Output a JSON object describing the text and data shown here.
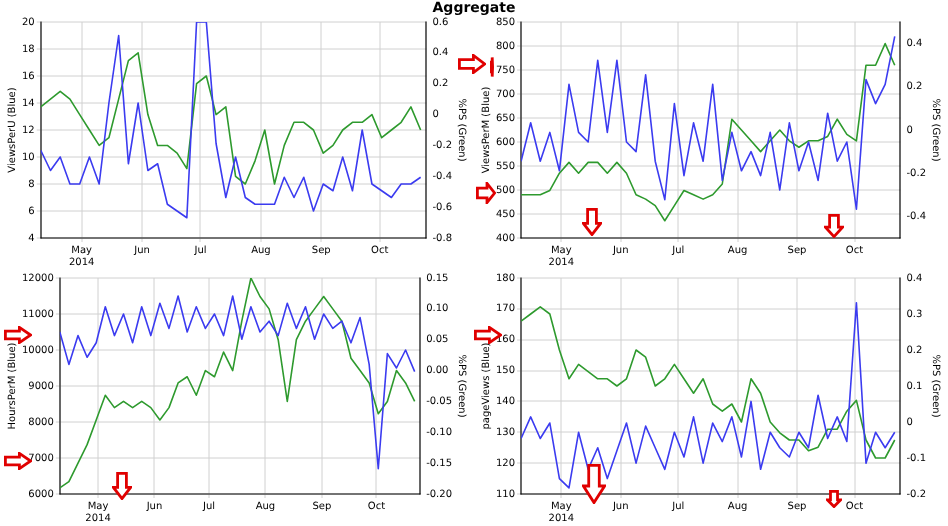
{
  "chart_data": [
    {
      "type": "line",
      "title": "Aggregate",
      "ylabel": "ViewsPerU (Blue)",
      "y2label": "%PS (Green)",
      "grid": true,
      "x": [
        "2014-04-10",
        "2014-04-15",
        "2014-04-20",
        "2014-04-25",
        "2014-04-30",
        "2014-05-05",
        "2014-05-10",
        "2014-05-15",
        "2014-05-20",
        "2014-05-25",
        "2014-05-30",
        "2014-06-04",
        "2014-06-09",
        "2014-06-14",
        "2014-06-19",
        "2014-06-24",
        "2014-06-29",
        "2014-07-04",
        "2014-07-09",
        "2014-07-14",
        "2014-07-19",
        "2014-07-24",
        "2014-07-29",
        "2014-08-03",
        "2014-08-08",
        "2014-08-13",
        "2014-08-18",
        "2014-08-23",
        "2014-08-28",
        "2014-09-02",
        "2014-09-07",
        "2014-09-12",
        "2014-09-17",
        "2014-09-22",
        "2014-09-27",
        "2014-10-02",
        "2014-10-07",
        "2014-10-12",
        "2014-10-17",
        "2014-10-22"
      ],
      "xlim": [
        "2014-04-10",
        "2014-10-25"
      ],
      "xticks": [
        {
          "value": "2014-05-01",
          "label": "May\n2014"
        },
        {
          "value": "2014-06-01",
          "label": "Jun"
        },
        {
          "value": "2014-07-01",
          "label": "Jul"
        },
        {
          "value": "2014-08-01",
          "label": "Aug"
        },
        {
          "value": "2014-09-01",
          "label": "Sep"
        },
        {
          "value": "2014-10-01",
          "label": "Oct"
        }
      ],
      "ylim": [
        4,
        20
      ],
      "yticks": [
        4,
        6,
        8,
        10,
        12,
        14,
        16,
        18,
        20
      ],
      "y2lim": [
        -0.8,
        0.6
      ],
      "y2ticks": [
        -0.8,
        -0.6,
        -0.4,
        -0.2,
        0.0,
        0.2,
        0.4,
        0.6
      ],
      "series": [
        {
          "color": "#3b3bf0",
          "values": [
            10.5,
            9,
            10,
            8,
            8,
            10,
            8,
            14,
            19,
            9.5,
            14,
            9,
            9.5,
            6.5,
            6,
            5.5,
            20,
            20,
            11,
            7,
            10,
            7,
            6.5,
            6.5,
            6.5,
            8.5,
            7,
            8.5,
            6,
            8,
            7.5,
            10,
            7.5,
            12,
            8,
            7.5,
            7,
            8,
            8,
            8.5
          ]
        },
        {
          "color": "#2e9a2e",
          "axis": "y2",
          "values": [
            0.05,
            0.1,
            0.15,
            0.1,
            0.0,
            -0.1,
            -0.2,
            -0.15,
            0.1,
            0.35,
            0.4,
            0.0,
            -0.2,
            -0.2,
            -0.25,
            -0.35,
            0.2,
            0.25,
            0.0,
            0.05,
            -0.4,
            -0.45,
            -0.3,
            -0.1,
            -0.45,
            -0.2,
            -0.05,
            -0.05,
            -0.1,
            -0.25,
            -0.2,
            -0.1,
            -0.05,
            -0.05,
            0.0,
            -0.15,
            -0.1,
            -0.05,
            0.05,
            -0.1
          ]
        }
      ]
    },
    {
      "type": "line",
      "ylabel": "ViewsPerM (Blue)",
      "y2label": "%PS (Green)",
      "grid": true,
      "x": [
        "2014-04-10",
        "2014-04-15",
        "2014-04-20",
        "2014-04-25",
        "2014-04-30",
        "2014-05-05",
        "2014-05-10",
        "2014-05-15",
        "2014-05-20",
        "2014-05-25",
        "2014-05-30",
        "2014-06-04",
        "2014-06-09",
        "2014-06-14",
        "2014-06-19",
        "2014-06-24",
        "2014-06-29",
        "2014-07-04",
        "2014-07-09",
        "2014-07-14",
        "2014-07-19",
        "2014-07-24",
        "2014-07-29",
        "2014-08-03",
        "2014-08-08",
        "2014-08-13",
        "2014-08-18",
        "2014-08-23",
        "2014-08-28",
        "2014-09-02",
        "2014-09-07",
        "2014-09-12",
        "2014-09-17",
        "2014-09-22",
        "2014-09-27",
        "2014-10-02",
        "2014-10-07",
        "2014-10-12",
        "2014-10-17",
        "2014-10-22"
      ],
      "xlim": [
        "2014-04-10",
        "2014-10-25"
      ],
      "xticks": [
        {
          "value": "2014-05-01",
          "label": "May\n2014"
        },
        {
          "value": "2014-06-01",
          "label": "Jun"
        },
        {
          "value": "2014-07-01",
          "label": "Jul"
        },
        {
          "value": "2014-08-01",
          "label": "Aug"
        },
        {
          "value": "2014-09-01",
          "label": "Sep"
        },
        {
          "value": "2014-10-01",
          "label": "Oct"
        }
      ],
      "ylim": [
        400,
        850
      ],
      "yticks": [
        400,
        450,
        500,
        550,
        600,
        650,
        700,
        750,
        800,
        850
      ],
      "y2lim": [
        -0.5,
        0.5
      ],
      "y2ticks": [
        -0.4,
        -0.2,
        0.0,
        0.2,
        0.4
      ],
      "series": [
        {
          "color": "#3b3bf0",
          "values": [
            560,
            640,
            560,
            620,
            540,
            720,
            620,
            600,
            770,
            620,
            770,
            600,
            580,
            740,
            560,
            480,
            680,
            530,
            640,
            560,
            720,
            520,
            620,
            540,
            580,
            530,
            620,
            500,
            640,
            540,
            600,
            520,
            660,
            560,
            600,
            460,
            730,
            680,
            720,
            820
          ]
        },
        {
          "color": "#2e9a2e",
          "axis": "y2",
          "values": [
            -0.3,
            -0.3,
            -0.3,
            -0.28,
            -0.2,
            -0.15,
            -0.2,
            -0.15,
            -0.15,
            -0.2,
            -0.15,
            -0.2,
            -0.3,
            -0.32,
            -0.35,
            -0.42,
            -0.35,
            -0.28,
            -0.3,
            -0.32,
            -0.3,
            -0.25,
            0.05,
            0.0,
            -0.05,
            -0.1,
            -0.05,
            0.0,
            -0.05,
            -0.08,
            -0.05,
            -0.05,
            -0.03,
            0.05,
            -0.02,
            -0.05,
            0.3,
            0.3,
            0.4,
            0.3
          ]
        }
      ]
    },
    {
      "type": "line",
      "ylabel": "HoursPerM (Blue)",
      "y2label": "%PS (Green)",
      "grid": true,
      "x": [
        "2014-04-10",
        "2014-04-15",
        "2014-04-20",
        "2014-04-25",
        "2014-04-30",
        "2014-05-05",
        "2014-05-10",
        "2014-05-15",
        "2014-05-20",
        "2014-05-25",
        "2014-05-30",
        "2014-06-04",
        "2014-06-09",
        "2014-06-14",
        "2014-06-19",
        "2014-06-24",
        "2014-06-29",
        "2014-07-04",
        "2014-07-09",
        "2014-07-14",
        "2014-07-19",
        "2014-07-24",
        "2014-07-29",
        "2014-08-03",
        "2014-08-08",
        "2014-08-13",
        "2014-08-18",
        "2014-08-23",
        "2014-08-28",
        "2014-09-02",
        "2014-09-07",
        "2014-09-12",
        "2014-09-17",
        "2014-09-22",
        "2014-09-27",
        "2014-10-02",
        "2014-10-07",
        "2014-10-12",
        "2014-10-17",
        "2014-10-22"
      ],
      "xlim": [
        "2014-04-10",
        "2014-10-25"
      ],
      "xticks": [
        {
          "value": "2014-05-01",
          "label": "May\n2014"
        },
        {
          "value": "2014-06-01",
          "label": "Jun"
        },
        {
          "value": "2014-07-01",
          "label": "Jul"
        },
        {
          "value": "2014-08-01",
          "label": "Aug"
        },
        {
          "value": "2014-09-01",
          "label": "Sep"
        },
        {
          "value": "2014-10-01",
          "label": "Oct"
        }
      ],
      "ylim": [
        6000,
        12000
      ],
      "yticks": [
        6000,
        7000,
        8000,
        9000,
        10000,
        11000,
        12000
      ],
      "y2lim": [
        -0.2,
        0.15
      ],
      "y2ticks": [
        {
          "value": -0.2,
          "label": "-0.20"
        },
        {
          "value": -0.15,
          "label": "-0.15"
        },
        {
          "value": -0.1,
          "label": "-0.10"
        },
        {
          "value": -0.05,
          "label": "-0.05"
        },
        {
          "value": 0,
          "label": "0.00"
        },
        {
          "value": 0.05,
          "label": "0.05"
        },
        {
          "value": 0.1,
          "label": "0.10"
        },
        {
          "value": 0.15,
          "label": "0.15"
        }
      ],
      "series": [
        {
          "color": "#3b3bf0",
          "values": [
            10500,
            9600,
            10400,
            9800,
            10200,
            11200,
            10400,
            11000,
            10200,
            11200,
            10400,
            11300,
            10600,
            11500,
            10500,
            11200,
            10600,
            11000,
            10400,
            11500,
            10300,
            11200,
            10500,
            10800,
            10400,
            11300,
            10600,
            11200,
            10300,
            11000,
            10600,
            10800,
            10200,
            10900,
            9600,
            6700,
            9900,
            9500,
            10000,
            9400
          ]
        },
        {
          "color": "#2e9a2e",
          "axis": "y2",
          "values": [
            -0.19,
            -0.18,
            -0.15,
            -0.12,
            -0.08,
            -0.04,
            -0.06,
            -0.05,
            -0.06,
            -0.05,
            -0.06,
            -0.08,
            -0.06,
            -0.02,
            -0.01,
            -0.04,
            0.0,
            -0.01,
            0.03,
            0.0,
            0.08,
            0.15,
            0.12,
            0.1,
            0.05,
            -0.05,
            0.05,
            0.08,
            0.1,
            0.12,
            0.1,
            0.08,
            0.02,
            0.0,
            -0.02,
            -0.07,
            -0.05,
            0.0,
            -0.02,
            -0.05
          ]
        }
      ]
    },
    {
      "type": "line",
      "ylabel": "pageViews (Blue)",
      "y2label": "%PS (Green)",
      "grid": true,
      "x": [
        "2014-04-10",
        "2014-04-15",
        "2014-04-20",
        "2014-04-25",
        "2014-04-30",
        "2014-05-05",
        "2014-05-10",
        "2014-05-15",
        "2014-05-20",
        "2014-05-25",
        "2014-05-30",
        "2014-06-04",
        "2014-06-09",
        "2014-06-14",
        "2014-06-19",
        "2014-06-24",
        "2014-06-29",
        "2014-07-04",
        "2014-07-09",
        "2014-07-14",
        "2014-07-19",
        "2014-07-24",
        "2014-07-29",
        "2014-08-03",
        "2014-08-08",
        "2014-08-13",
        "2014-08-18",
        "2014-08-23",
        "2014-08-28",
        "2014-09-02",
        "2014-09-07",
        "2014-09-12",
        "2014-09-17",
        "2014-09-22",
        "2014-09-27",
        "2014-10-02",
        "2014-10-07",
        "2014-10-12",
        "2014-10-17",
        "2014-10-22"
      ],
      "xlim": [
        "2014-04-10",
        "2014-10-25"
      ],
      "xticks": [
        {
          "value": "2014-05-01",
          "label": "May\n2014"
        },
        {
          "value": "2014-06-01",
          "label": "Jun"
        },
        {
          "value": "2014-07-01",
          "label": "Jul"
        },
        {
          "value": "2014-08-01",
          "label": "Aug"
        },
        {
          "value": "2014-09-01",
          "label": "Sep"
        },
        {
          "value": "2014-10-01",
          "label": "Oct"
        }
      ],
      "ylim": [
        110,
        180
      ],
      "yticks": [
        110,
        120,
        130,
        140,
        150,
        160,
        170,
        180
      ],
      "y2lim": [
        -0.2,
        0.4
      ],
      "y2ticks": [
        -0.2,
        -0.1,
        0.0,
        0.1,
        0.2,
        0.3,
        0.4
      ],
      "series": [
        {
          "color": "#3b3bf0",
          "values": [
            128,
            135,
            128,
            133,
            115,
            112,
            130,
            118,
            125,
            115,
            124,
            133,
            120,
            132,
            125,
            118,
            130,
            122,
            135,
            120,
            133,
            127,
            135,
            122,
            140,
            118,
            130,
            125,
            122,
            130,
            125,
            142,
            128,
            135,
            127,
            172,
            120,
            130,
            125,
            130
          ]
        },
        {
          "color": "#2e9a2e",
          "axis": "y2",
          "values": [
            0.28,
            0.3,
            0.32,
            0.3,
            0.2,
            0.12,
            0.16,
            0.14,
            0.12,
            0.12,
            0.1,
            0.12,
            0.2,
            0.18,
            0.1,
            0.12,
            0.16,
            0.12,
            0.08,
            0.12,
            0.05,
            0.03,
            0.05,
            0.0,
            0.12,
            0.08,
            0.0,
            -0.03,
            -0.05,
            -0.05,
            -0.08,
            -0.07,
            -0.02,
            -0.02,
            0.03,
            0.06,
            -0.05,
            -0.1,
            -0.1,
            -0.05
          ]
        }
      ]
    }
  ]
}
